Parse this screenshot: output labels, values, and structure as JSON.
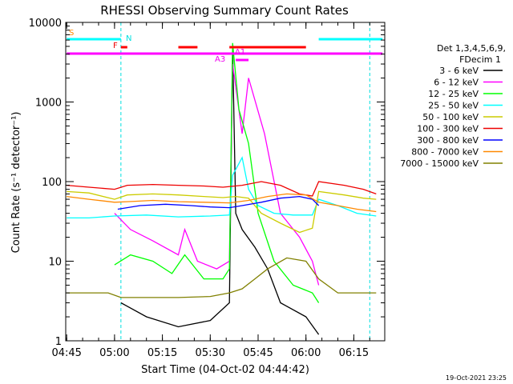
{
  "chart_data": {
    "type": "line",
    "title": "RHESSI Observing Summary Count Rates",
    "xlabel": "Start Time (04-Oct-02 04:44:42)",
    "ylabel": "Count Rate (s⁻¹ detector⁻¹)",
    "x_ticks": [
      "04:45",
      "05:00",
      "05:15",
      "05:30",
      "05:45",
      "06:00",
      "06:15"
    ],
    "y_ticks": [
      "1",
      "10",
      "100",
      "1000",
      "10000"
    ],
    "y_scale": "log",
    "ylim": [
      1,
      10000
    ],
    "xlim": [
      "04:44:42",
      "06:24:42"
    ],
    "legend_header": [
      "Det 1,3,4,5,6,9,",
      "FDecim 1"
    ],
    "timestamp": "19-Oct-2021 23:25",
    "flags": [
      {
        "label": "S",
        "color": "#ff8800"
      },
      {
        "label": "N",
        "color": "#00e0e0"
      },
      {
        "label": "F",
        "color": "#ee0000"
      },
      {
        "label": "A1",
        "color": "#ee00ee"
      },
      {
        "label": "A3",
        "color": "#ee00ee"
      }
    ],
    "flag_bars": [
      {
        "color": "#00ffff",
        "start": "04:45",
        "end": "05:02"
      },
      {
        "color": "#00ffff",
        "start": "06:04",
        "end": "06:24"
      },
      {
        "color": "#ff0000",
        "start": "05:02",
        "end": "05:04"
      },
      {
        "color": "#ff0000",
        "start": "05:20",
        "end": "05:26"
      },
      {
        "color": "#ff0000",
        "start": "05:36",
        "end": "06:00"
      },
      {
        "color": "#ff00ff",
        "start": "04:45",
        "end": "06:24"
      },
      {
        "color": "#ff00ff",
        "start": "05:38",
        "end": "05:42"
      }
    ],
    "vlines": [
      {
        "time": "05:02",
        "color": "#00e0e0"
      },
      {
        "time": "06:20",
        "color": "#00e0e0"
      }
    ],
    "series": [
      {
        "name": "3 - 6 keV",
        "color": "#000000",
        "points": [
          [
            "04:45",
            null
          ],
          [
            "05:02",
            3
          ],
          [
            "05:10",
            2
          ],
          [
            "05:20",
            1.5
          ],
          [
            "05:30",
            1.8
          ],
          [
            "05:36",
            3
          ],
          [
            "05:37",
            5000
          ],
          [
            "05:38",
            40
          ],
          [
            "05:40",
            25
          ],
          [
            "05:44",
            15
          ],
          [
            "05:48",
            8
          ],
          [
            "05:52",
            3
          ],
          [
            "06:00",
            2
          ],
          [
            "06:04",
            1.2
          ]
        ]
      },
      {
        "name": "6 - 12 keV",
        "color": "#ff00ff",
        "points": [
          [
            "04:45",
            null
          ],
          [
            "05:00",
            40
          ],
          [
            "05:05",
            25
          ],
          [
            "05:12",
            18
          ],
          [
            "05:20",
            12
          ],
          [
            "05:22",
            25
          ],
          [
            "05:26",
            10
          ],
          [
            "05:32",
            8
          ],
          [
            "05:36",
            10
          ],
          [
            "05:37",
            3000
          ],
          [
            "05:40",
            400
          ],
          [
            "05:42",
            2000
          ],
          [
            "05:47",
            400
          ],
          [
            "05:52",
            40
          ],
          [
            "05:58",
            20
          ],
          [
            "06:02",
            10
          ],
          [
            "06:04",
            5
          ]
        ]
      },
      {
        "name": "12 - 25 keV",
        "color": "#00ff00",
        "points": [
          [
            "04:45",
            null
          ],
          [
            "05:00",
            9
          ],
          [
            "05:05",
            12
          ],
          [
            "05:12",
            10
          ],
          [
            "05:18",
            7
          ],
          [
            "05:22",
            12
          ],
          [
            "05:28",
            6
          ],
          [
            "05:34",
            6
          ],
          [
            "05:36",
            8
          ],
          [
            "05:37",
            5500
          ],
          [
            "05:39",
            800
          ],
          [
            "05:42",
            300
          ],
          [
            "05:45",
            40
          ],
          [
            "05:50",
            10
          ],
          [
            "05:56",
            5
          ],
          [
            "06:02",
            4
          ],
          [
            "06:04",
            3
          ]
        ]
      },
      {
        "name": "25 - 50 keV",
        "color": "#00ffff",
        "points": [
          [
            "04:45",
            35
          ],
          [
            "04:52",
            35
          ],
          [
            "05:00",
            37
          ],
          [
            "05:10",
            38
          ],
          [
            "05:20",
            36
          ],
          [
            "05:30",
            37
          ],
          [
            "05:36",
            38
          ],
          [
            "05:37",
            120
          ],
          [
            "05:40",
            200
          ],
          [
            "05:42",
            80
          ],
          [
            "05:45",
            50
          ],
          [
            "05:50",
            40
          ],
          [
            "05:56",
            38
          ],
          [
            "06:02",
            38
          ],
          [
            "06:04",
            60
          ],
          [
            "06:10",
            50
          ],
          [
            "06:16",
            40
          ],
          [
            "06:22",
            37
          ]
        ]
      },
      {
        "name": "50 - 100 keV",
        "color": "#cccc00",
        "points": [
          [
            "04:45",
            75
          ],
          [
            "04:52",
            72
          ],
          [
            "05:00",
            60
          ],
          [
            "05:04",
            68
          ],
          [
            "05:12",
            70
          ],
          [
            "05:20",
            68
          ],
          [
            "05:28",
            65
          ],
          [
            "05:34",
            63
          ],
          [
            "05:38",
            65
          ],
          [
            "05:42",
            62
          ],
          [
            "05:46",
            40
          ],
          [
            "05:52",
            30
          ],
          [
            "05:58",
            23
          ],
          [
            "06:02",
            26
          ],
          [
            "06:04",
            75
          ],
          [
            "06:12",
            68
          ],
          [
            "06:18",
            62
          ],
          [
            "06:22",
            60
          ]
        ]
      },
      {
        "name": "100 - 300 keV",
        "color": "#ee0000",
        "points": [
          [
            "04:45",
            90
          ],
          [
            "04:52",
            85
          ],
          [
            "05:00",
            80
          ],
          [
            "05:04",
            90
          ],
          [
            "05:12",
            92
          ],
          [
            "05:20",
            90
          ],
          [
            "05:28",
            88
          ],
          [
            "05:34",
            85
          ],
          [
            "05:40",
            90
          ],
          [
            "05:46",
            100
          ],
          [
            "05:52",
            90
          ],
          [
            "05:58",
            70
          ],
          [
            "06:02",
            66
          ],
          [
            "06:04",
            100
          ],
          [
            "06:12",
            90
          ],
          [
            "06:18",
            80
          ],
          [
            "06:22",
            70
          ]
        ]
      },
      {
        "name": "300 - 800 keV",
        "color": "#0000ff",
        "points": [
          [
            "04:45",
            null
          ],
          [
            "05:01",
            45
          ],
          [
            "05:08",
            50
          ],
          [
            "05:16",
            52
          ],
          [
            "05:24",
            50
          ],
          [
            "05:30",
            48
          ],
          [
            "05:36",
            47
          ],
          [
            "05:40",
            50
          ],
          [
            "05:46",
            55
          ],
          [
            "05:52",
            62
          ],
          [
            "05:58",
            65
          ],
          [
            "06:02",
            60
          ],
          [
            "06:04",
            50
          ]
        ]
      },
      {
        "name": "800 - 7000 keV",
        "color": "#ff8800",
        "points": [
          [
            "04:45",
            65
          ],
          [
            "04:52",
            60
          ],
          [
            "05:00",
            55
          ],
          [
            "05:04",
            56
          ],
          [
            "05:12",
            58
          ],
          [
            "05:20",
            56
          ],
          [
            "05:28",
            55
          ],
          [
            "05:36",
            54
          ],
          [
            "05:42",
            58
          ],
          [
            "05:48",
            65
          ],
          [
            "05:54",
            70
          ],
          [
            "06:00",
            68
          ],
          [
            "06:04",
            55
          ],
          [
            "06:10",
            50
          ],
          [
            "06:16",
            45
          ],
          [
            "06:22",
            42
          ]
        ]
      },
      {
        "name": "7000 - 15000 keV",
        "color": "#808000",
        "points": [
          [
            "04:45",
            4
          ],
          [
            "04:52",
            4
          ],
          [
            "04:58",
            4
          ],
          [
            "05:02",
            3.5
          ],
          [
            "05:10",
            3.5
          ],
          [
            "05:20",
            3.5
          ],
          [
            "05:30",
            3.6
          ],
          [
            "05:36",
            4
          ],
          [
            "05:40",
            4.5
          ],
          [
            "05:44",
            6
          ],
          [
            "05:48",
            8
          ],
          [
            "05:54",
            11
          ],
          [
            "06:00",
            10
          ],
          [
            "06:04",
            6
          ],
          [
            "06:10",
            4
          ],
          [
            "06:16",
            4
          ],
          [
            "06:22",
            4
          ]
        ]
      }
    ]
  }
}
